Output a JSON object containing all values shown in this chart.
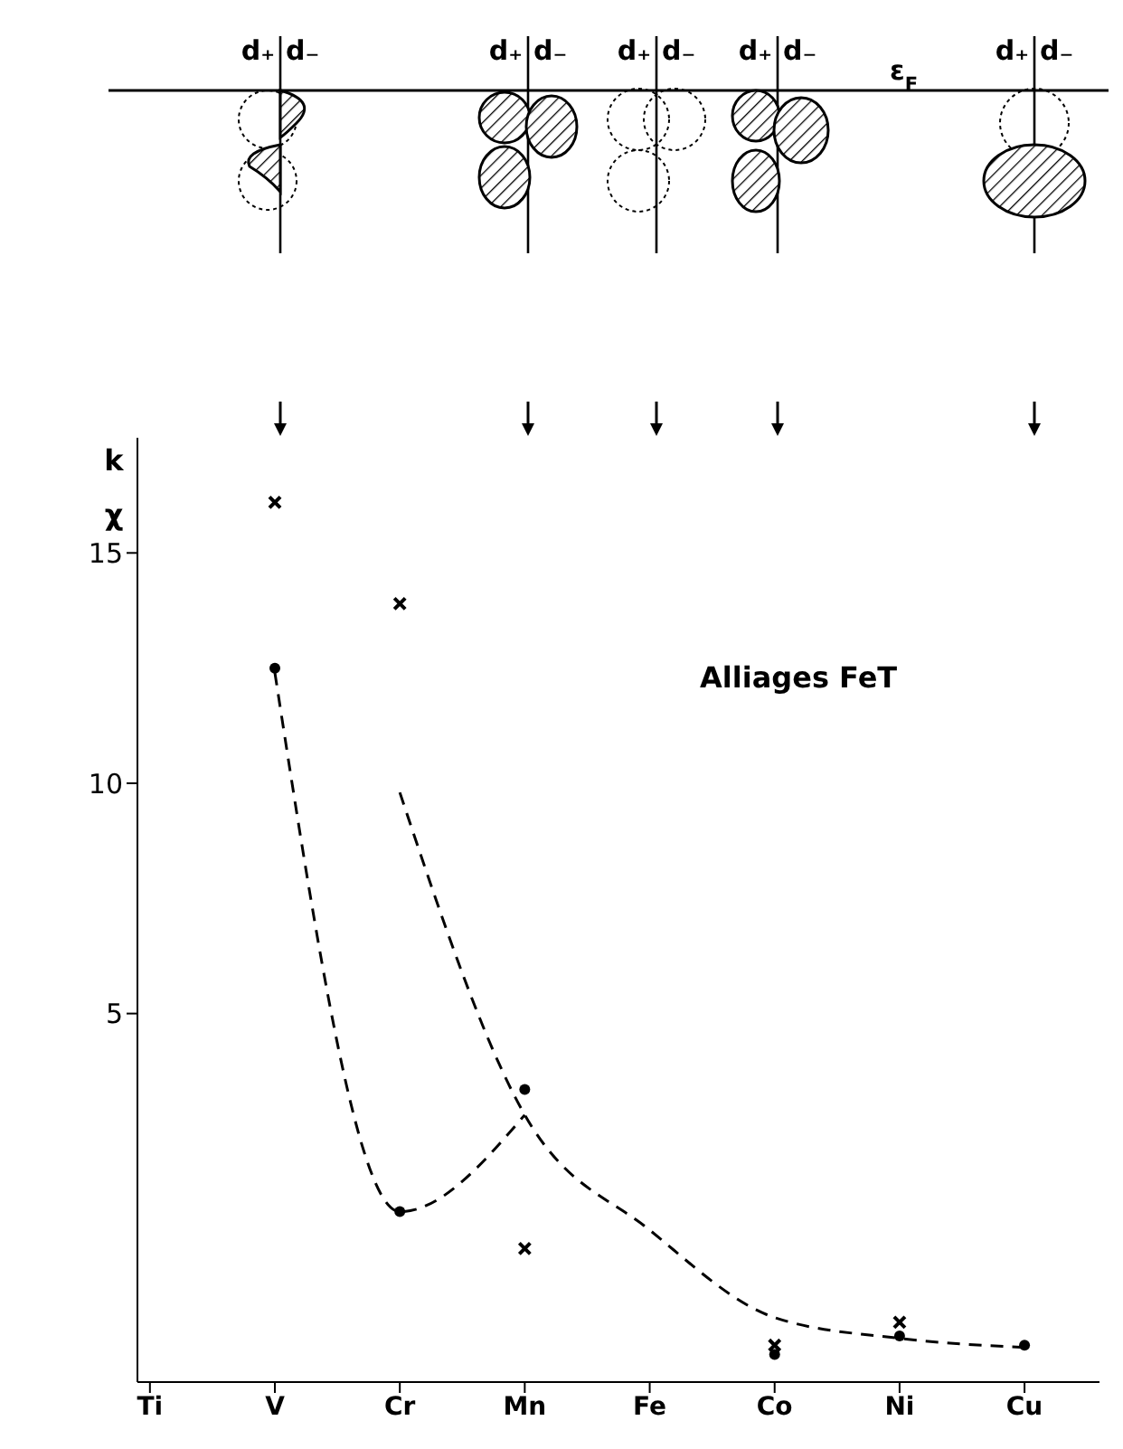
{
  "chart_data": {
    "type": "scatter",
    "ylabel": "k\nχ",
    "annotations": [
      "Alliages FeT",
      "d₊",
      "d₋",
      "ε$_{F}$"
    ],
    "categories": [
      "Ti",
      "V",
      "Cr",
      "Mn",
      "Fe",
      "Co",
      "Ni",
      "Cu"
    ],
    "ylim": [
      -3,
      17.5
    ],
    "yticks": [
      5,
      10,
      15
    ],
    "grid": false,
    "series": [
      {
        "marker": "cross",
        "color": "#000000",
        "values": [
          null,
          16.1,
          13.9,
          -0.1,
          null,
          -2.2,
          -1.7,
          null
        ]
      },
      {
        "marker": "circle",
        "color": "#000000",
        "values": [
          null,
          12.5,
          0.7,
          3.35,
          null,
          -2.4,
          -2.0,
          -2.2
        ]
      },
      {
        "type": "line",
        "line_style": "dashed",
        "marker": "none",
        "color": "#000000",
        "values": [
          null,
          null,
          9.8,
          2.8,
          0.3,
          -1.6,
          -2.05,
          -2.25
        ]
      },
      {
        "type": "line",
        "line_style": "dashed",
        "marker": "none",
        "color": "#000000",
        "values": [
          null,
          12.4,
          0.7,
          2.8,
          null,
          null,
          null,
          null
        ]
      }
    ]
  }
}
